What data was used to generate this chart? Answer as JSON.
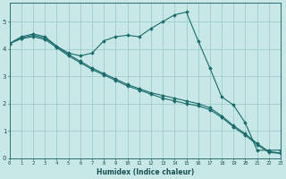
{
  "xlabel": "Humidex (Indice chaleur)",
  "bg_color": "#c8e8e8",
  "grid_color": "#a0cccc",
  "line_color": "#1a6b6b",
  "lines": [
    {
      "x": [
        0,
        1,
        2,
        3,
        4,
        5,
        6,
        7,
        8,
        9,
        10,
        11,
        12,
        13,
        14,
        15,
        16,
        17,
        18,
        19,
        20,
        21,
        22,
        23
      ],
      "y": [
        4.2,
        4.45,
        4.55,
        4.45,
        4.1,
        3.85,
        3.75,
        3.85,
        4.3,
        4.45,
        4.5,
        4.45,
        4.75,
        5.0,
        5.25,
        5.35,
        4.3,
        3.3,
        2.25,
        1.95,
        1.3,
        0.3,
        0.3,
        0.3
      ]
    },
    {
      "x": [
        0,
        1,
        2,
        3,
        4,
        5,
        6,
        7,
        8,
        9,
        10,
        11,
        12,
        13,
        14,
        15,
        16,
        17,
        18,
        19,
        20,
        21,
        22,
        23
      ],
      "y": [
        4.2,
        4.4,
        4.5,
        4.4,
        4.1,
        3.8,
        3.55,
        3.3,
        3.1,
        2.9,
        2.7,
        2.55,
        2.4,
        2.3,
        2.2,
        2.1,
        2.0,
        1.85,
        1.55,
        1.2,
        0.9,
        0.55,
        0.25,
        0.2
      ]
    },
    {
      "x": [
        0,
        1,
        2,
        3,
        4,
        5,
        6,
        7,
        8,
        9,
        10,
        11,
        12,
        13,
        14,
        15,
        16,
        17,
        18,
        19,
        20,
        21,
        22,
        23
      ],
      "y": [
        4.2,
        4.38,
        4.45,
        4.35,
        4.05,
        3.75,
        3.5,
        3.25,
        3.05,
        2.85,
        2.65,
        2.5,
        2.35,
        2.2,
        2.1,
        2.0,
        1.92,
        1.78,
        1.5,
        1.15,
        0.85,
        0.5,
        0.22,
        0.18
      ]
    }
  ],
  "xlim": [
    0,
    23
  ],
  "ylim": [
    0,
    5.7
  ],
  "yticks": [
    0,
    1,
    2,
    3,
    4,
    5
  ],
  "xticks": [
    0,
    1,
    2,
    3,
    4,
    5,
    6,
    7,
    8,
    9,
    10,
    11,
    12,
    13,
    14,
    15,
    16,
    17,
    18,
    19,
    20,
    21,
    22,
    23
  ]
}
